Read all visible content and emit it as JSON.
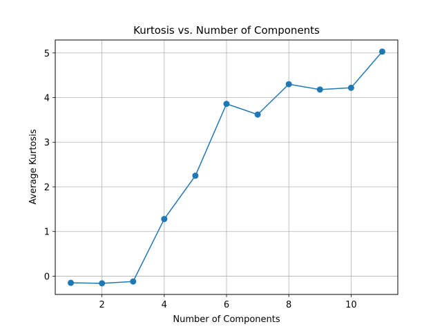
{
  "chart_data": {
    "type": "line",
    "title": "Kurtosis vs. Number of Components",
    "xlabel": "Number of Components",
    "ylabel": "Average Kurtosis",
    "x": [
      1,
      2,
      3,
      4,
      5,
      6,
      7,
      8,
      9,
      10,
      11
    ],
    "series": [
      {
        "values": [
          -0.15,
          -0.16,
          -0.12,
          1.28,
          2.25,
          3.86,
          3.62,
          4.3,
          4.18,
          4.22,
          5.03
        ],
        "color": "#1f77b4",
        "marker": "circle"
      }
    ],
    "xlim": [
      0.5,
      11.5
    ],
    "ylim": [
      -0.41,
      5.29
    ],
    "xticks": [
      2,
      4,
      6,
      8,
      10
    ],
    "yticks": [
      0,
      1,
      2,
      3,
      4,
      5
    ],
    "grid": true
  }
}
